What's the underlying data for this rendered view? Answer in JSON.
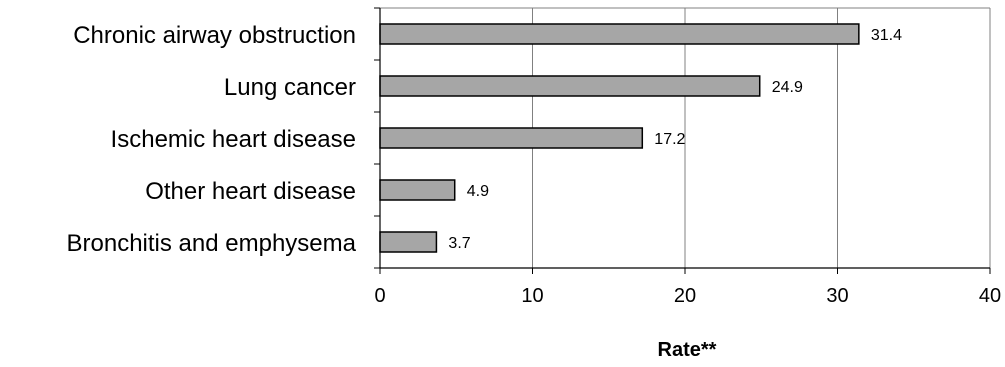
{
  "chart_data": {
    "type": "bar",
    "orientation": "horizontal",
    "categories": [
      "Chronic airway obstruction",
      "Lung cancer",
      "Ischemic heart disease",
      "Other heart disease",
      "Bronchitis and emphysema"
    ],
    "values": [
      31.4,
      24.9,
      17.2,
      4.9,
      3.7
    ],
    "value_labels": [
      "31.4",
      "24.9",
      "17.2",
      "4.9",
      "3.7"
    ],
    "xlabel": "Rate**",
    "ylabel": "",
    "xlim": [
      0,
      40
    ],
    "xticks": [
      0,
      10,
      20,
      30,
      40
    ],
    "xtick_labels": [
      "0",
      "10",
      "20",
      "30",
      "40"
    ],
    "grid": "vertical",
    "bar_color": "#a6a6a6",
    "bar_edge_color": "#000000",
    "grid_color": "#808080"
  }
}
